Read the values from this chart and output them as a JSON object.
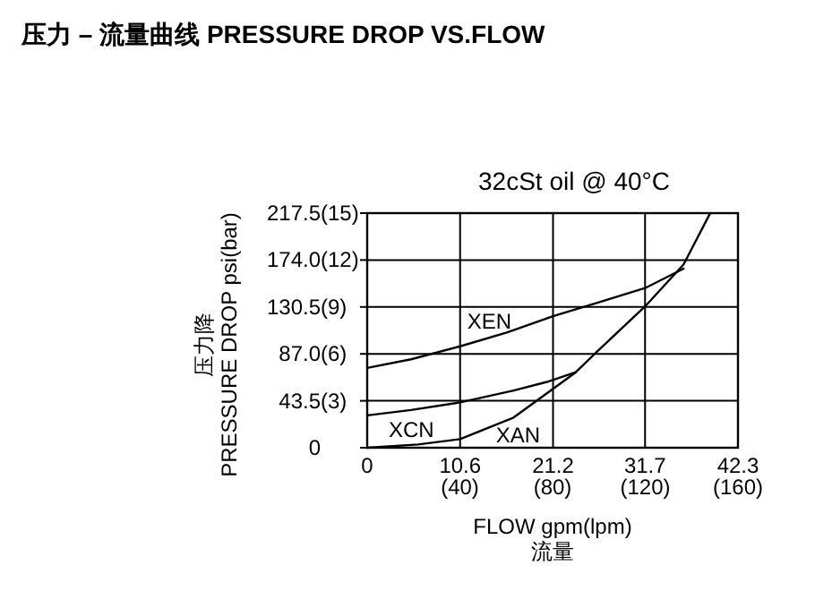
{
  "chart_data": {
    "type": "line",
    "title": "压力 – 流量曲线 PRESSURE DROP VS.FLOW",
    "subtitle": "32cSt  oil @ 40°C",
    "xlabel": "FLOW gpm(lpm)\n流量",
    "ylabel": "压力降\nPRESSURE DROP psi(bar)",
    "xlim": [
      0,
      42.3
    ],
    "ylim": [
      0,
      217.5
    ],
    "xticks": [
      0,
      10.6,
      21.2,
      31.7,
      42.3
    ],
    "x2lim": [
      0,
      160
    ],
    "x2ticks": [
      {
        "value": 40,
        "label": "(40)"
      },
      {
        "value": 80,
        "label": "(80)"
      },
      {
        "value": 120,
        "label": "(120)"
      },
      {
        "value": 160,
        "label": "(160)"
      }
    ],
    "yticks": [
      0,
      43.5,
      {
        "value": 87,
        "label": "87.0"
      },
      130.5,
      {
        "value": 174,
        "label": "174.0"
      },
      217.5
    ],
    "y2lim": [
      0,
      15
    ],
    "y2ticks": [
      {
        "value": 3,
        "label": "(3)"
      },
      {
        "value": 6,
        "label": "(6)"
      },
      {
        "value": 9,
        "label": "(9)"
      },
      {
        "value": 12,
        "label": "(12)"
      },
      {
        "value": 15,
        "label": "(15)"
      }
    ],
    "grid": true,
    "marker": "none",
    "line_style": "solid",
    "series": [
      {
        "name": "XEN",
        "color": "#000000",
        "x": [
          0,
          5,
          10.6,
          16,
          21.2,
          26.5,
          31.7,
          36.1
        ],
        "values": [
          74,
          82,
          94,
          107,
          122,
          135,
          148,
          166
        ]
      },
      {
        "name": "XCN",
        "color": "#000000",
        "x": [
          0,
          5,
          10.6,
          16.7,
          20.5,
          23.8
        ],
        "values": [
          30,
          35,
          42,
          53,
          61,
          70
        ]
      },
      {
        "name": "XAN",
        "color": "#000000",
        "x": [
          0,
          5.8,
          10.6,
          16.7,
          23.8,
          26.2,
          31.7,
          36.1,
          39.1
        ],
        "values": [
          0,
          3,
          8,
          28,
          70,
          89,
          131,
          170,
          217
        ]
      }
    ]
  }
}
